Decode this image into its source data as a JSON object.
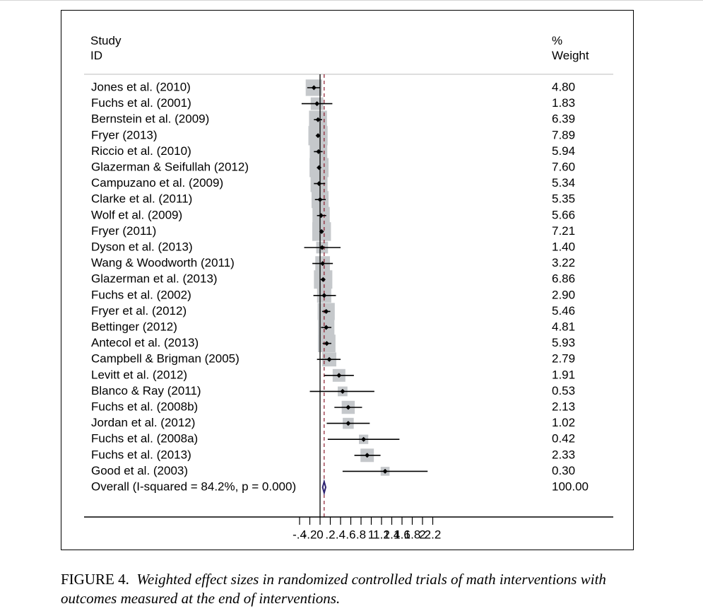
{
  "header": {
    "left_line1": "Study",
    "left_line2": "ID",
    "right_line1": "%",
    "right_line2": "Weight"
  },
  "caption": {
    "label": "FIGURE 4.",
    "text": "Weighted effect sizes in randomized controlled trials of math interventions with outcomes measured at the end of interventions."
  },
  "colors": {
    "box": "#c5c8cb",
    "line": "#000000",
    "null_line": "#000000",
    "overall_line": "#8b1a2b",
    "diamond": "#2d2270"
  },
  "chart_data": {
    "type": "forest",
    "xlim": [
      -0.4,
      2.2
    ],
    "ticks": [
      -0.4,
      -0.2,
      0,
      0.2,
      0.4,
      0.6,
      0.8,
      1,
      1.2,
      1.4,
      1.6,
      1.8,
      2,
      2.2
    ],
    "tick_labels": [
      "-.4",
      "-.2",
      "0",
      ".2",
      ".4",
      ".6",
      ".8",
      "1",
      "1.2",
      "1.4",
      "1.6",
      "1.8",
      "2",
      "2.2"
    ],
    "null_line": 0,
    "overall_line": 0.08,
    "studies": [
      {
        "label": "Jones et al. (2010)",
        "effect": -0.12,
        "lo": -0.25,
        "hi": 0.0,
        "weight": "4.80"
      },
      {
        "label": "Fuchs et al. (2001)",
        "effect": -0.06,
        "lo": -0.36,
        "hi": 0.24,
        "weight": "1.83"
      },
      {
        "label": "Bernstein et al. (2009)",
        "effect": -0.04,
        "lo": -0.12,
        "hi": 0.04,
        "weight": "6.39"
      },
      {
        "label": "Fryer (2013)",
        "effect": -0.04,
        "lo": -0.06,
        "hi": -0.02,
        "weight": "7.89"
      },
      {
        "label": "Riccio et al. (2010)",
        "effect": -0.03,
        "lo": -0.12,
        "hi": 0.05,
        "weight": "5.94"
      },
      {
        "label": "Glazerman & Seifullah (2012)",
        "effect": -0.02,
        "lo": -0.05,
        "hi": 0.01,
        "weight": "7.60"
      },
      {
        "label": "Campuzano et al. (2009)",
        "effect": -0.02,
        "lo": -0.12,
        "hi": 0.1,
        "weight": "5.34"
      },
      {
        "label": "Clarke et al. (2011)",
        "effect": 0.0,
        "lo": -0.1,
        "hi": 0.11,
        "weight": "5.35"
      },
      {
        "label": "Wolf et al. (2009)",
        "effect": 0.02,
        "lo": -0.06,
        "hi": 0.12,
        "weight": "5.66"
      },
      {
        "label": "Fryer (2011)",
        "effect": 0.03,
        "lo": -0.01,
        "hi": 0.07,
        "weight": "7.21"
      },
      {
        "label": "Dyson et al. (2013)",
        "effect": 0.04,
        "lo": -0.31,
        "hi": 0.4,
        "weight": "1.40"
      },
      {
        "label": "Wang & Woodworth (2011)",
        "effect": 0.05,
        "lo": -0.15,
        "hi": 0.25,
        "weight": "3.22"
      },
      {
        "label": "Glazerman et al. (2013)",
        "effect": 0.06,
        "lo": 0.01,
        "hi": 0.1,
        "weight": "6.86"
      },
      {
        "label": "Fuchs et al. (2002)",
        "effect": 0.08,
        "lo": -0.13,
        "hi": 0.31,
        "weight": "2.90"
      },
      {
        "label": "Fryer et al. (2012)",
        "effect": 0.12,
        "lo": 0.04,
        "hi": 0.2,
        "weight": "5.46"
      },
      {
        "label": "Bettinger (2012)",
        "effect": 0.12,
        "lo": 0.02,
        "hi": 0.22,
        "weight": "4.81"
      },
      {
        "label": "Antecol et al. (2013)",
        "effect": 0.13,
        "lo": 0.05,
        "hi": 0.22,
        "weight": "5.93"
      },
      {
        "label": "Campbell & Brigman (2005)",
        "effect": 0.18,
        "lo": -0.06,
        "hi": 0.4,
        "weight": "2.79"
      },
      {
        "label": "Levitt et al. (2012)",
        "effect": 0.37,
        "lo": 0.08,
        "hi": 0.66,
        "weight": "1.91"
      },
      {
        "label": "Blanco & Ray (2011)",
        "effect": 0.44,
        "lo": -0.2,
        "hi": 1.06,
        "weight": "0.53"
      },
      {
        "label": "Fuchs et al. (2008b)",
        "effect": 0.55,
        "lo": 0.28,
        "hi": 0.82,
        "weight": "2.13"
      },
      {
        "label": "Jordan et al. (2012)",
        "effect": 0.55,
        "lo": 0.13,
        "hi": 0.97,
        "weight": "1.02"
      },
      {
        "label": "Fuchs et al. (2008a)",
        "effect": 0.85,
        "lo": 0.15,
        "hi": 1.55,
        "weight": "0.42"
      },
      {
        "label": "Fuchs et al. (2013)",
        "effect": 0.92,
        "lo": 0.67,
        "hi": 1.18,
        "weight": "2.33"
      },
      {
        "label": "Good et al. (2003)",
        "effect": 1.27,
        "lo": 0.44,
        "hi": 2.1,
        "weight": "0.30"
      }
    ],
    "overall": {
      "label": "Overall  (I-squared = 84.2%, p = 0.000)",
      "effect": 0.08,
      "lo": 0.05,
      "hi": 0.11,
      "weight": "100.00"
    }
  }
}
